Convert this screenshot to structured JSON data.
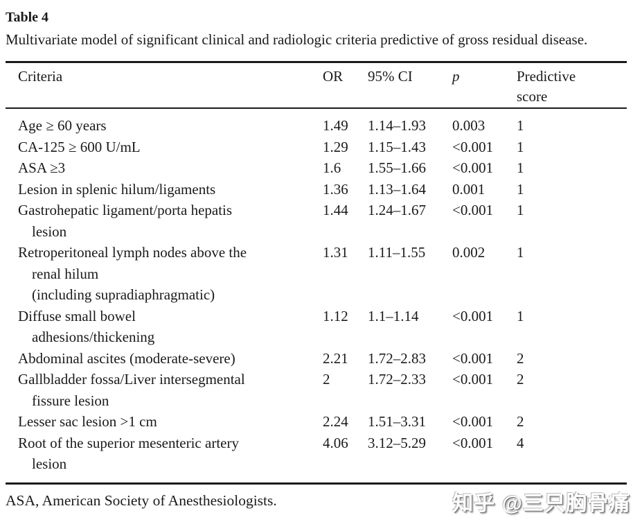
{
  "title": "Table 4",
  "caption": "Multivariate model of significant clinical and radiologic criteria predictive of gross residual disease.",
  "table": {
    "headers": {
      "criteria": "Criteria",
      "or": "OR",
      "ci": "95% CI",
      "p": "p",
      "score": [
        "Predictive",
        "score"
      ]
    },
    "rows": [
      {
        "criteria": [
          "Age ≥ 60 years"
        ],
        "or": "1.49",
        "ci": "1.14–1.93",
        "p": "0.003",
        "score": "1"
      },
      {
        "criteria": [
          "CA-125 ≥ 600 U/mL"
        ],
        "or": "1.29",
        "ci": "1.15–1.43",
        "p": "<0.001",
        "score": "1"
      },
      {
        "criteria": [
          "ASA ≥3"
        ],
        "or": "1.6",
        "ci": "1.55–1.66",
        "p": "<0.001",
        "score": "1"
      },
      {
        "criteria": [
          "Lesion in splenic hilum/ligaments"
        ],
        "or": "1.36",
        "ci": "1.13–1.64",
        "p": "0.001",
        "score": "1"
      },
      {
        "criteria": [
          "Gastrohepatic ligament/porta hepatis",
          "lesion"
        ],
        "or": "1.44",
        "ci": "1.24–1.67",
        "p": "<0.001",
        "score": "1"
      },
      {
        "criteria": [
          "Retroperitoneal lymph nodes above the",
          "renal hilum",
          "(including supradiaphragmatic)"
        ],
        "or": "1.31",
        "ci": "1.11–1.55",
        "p": "0.002",
        "score": "1"
      },
      {
        "criteria": [
          "Diffuse small bowel",
          "adhesions/thickening"
        ],
        "or": "1.12",
        "ci": "1.1–1.14",
        "p": "<0.001",
        "score": "1"
      },
      {
        "criteria": [
          "Abdominal ascites (moderate-severe)"
        ],
        "or": "2.21",
        "ci": "1.72–2.83",
        "p": "<0.001",
        "score": "2"
      },
      {
        "criteria": [
          "Gallbladder fossa/Liver intersegmental",
          "fissure lesion"
        ],
        "or": "2",
        "ci": "1.72–2.33",
        "p": "<0.001",
        "score": "2"
      },
      {
        "criteria": [
          "Lesser sac lesion >1 cm"
        ],
        "or": "2.24",
        "ci": "1.51–3.31",
        "p": "<0.001",
        "score": "2"
      },
      {
        "criteria": [
          "Root of the superior mesenteric artery",
          "lesion"
        ],
        "or": "4.06",
        "ci": "3.12–5.29",
        "p": "<0.001",
        "score": "4"
      }
    ]
  },
  "footnote": "ASA, American Society of Anesthesiologists.",
  "watermark": {
    "text": "知乎 @三只胸骨痛"
  },
  "colors": {
    "background": "#ffffff",
    "text": "#1a1a1a",
    "rule": "#1a1a1a",
    "watermark": "#fefefe"
  }
}
